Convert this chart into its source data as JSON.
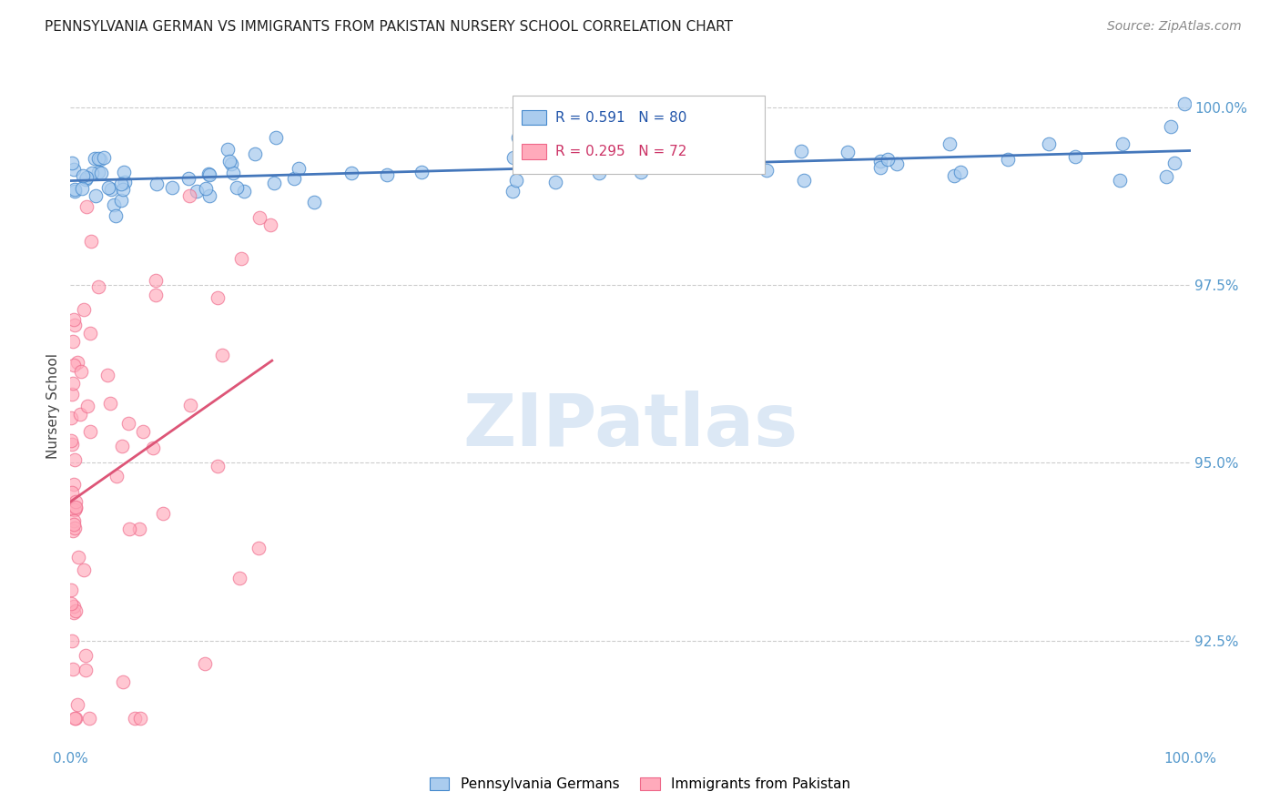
{
  "title": "PENNSYLVANIA GERMAN VS IMMIGRANTS FROM PAKISTAN NURSERY SCHOOL CORRELATION CHART",
  "source": "Source: ZipAtlas.com",
  "ylabel": "Nursery School",
  "legend_blue_label": "Pennsylvania Germans",
  "legend_pink_label": "Immigrants from Pakistan",
  "legend_blue_R": "R = 0.591",
  "legend_blue_N": "N = 80",
  "legend_pink_R": "R = 0.295",
  "legend_pink_N": "N = 72",
  "blue_face_color": "#aaccee",
  "blue_edge_color": "#4488cc",
  "pink_face_color": "#ffaabb",
  "pink_edge_color": "#ee6688",
  "blue_line_color": "#4477bb",
  "pink_line_color": "#dd5577",
  "watermark_color": "#dce8f5",
  "y_ticks": [
    92.5,
    95.0,
    97.5,
    100.0
  ],
  "y_tick_labels": [
    "92.5%",
    "95.0%",
    "97.5%",
    "100.0%"
  ],
  "xlim": [
    0.0,
    1.0
  ],
  "ylim": [
    91.0,
    100.6
  ],
  "background_color": "#ffffff",
  "grid_color": "#cccccc",
  "tick_color": "#5599cc",
  "title_fontsize": 11,
  "source_fontsize": 10,
  "tick_fontsize": 11,
  "ylabel_fontsize": 11
}
